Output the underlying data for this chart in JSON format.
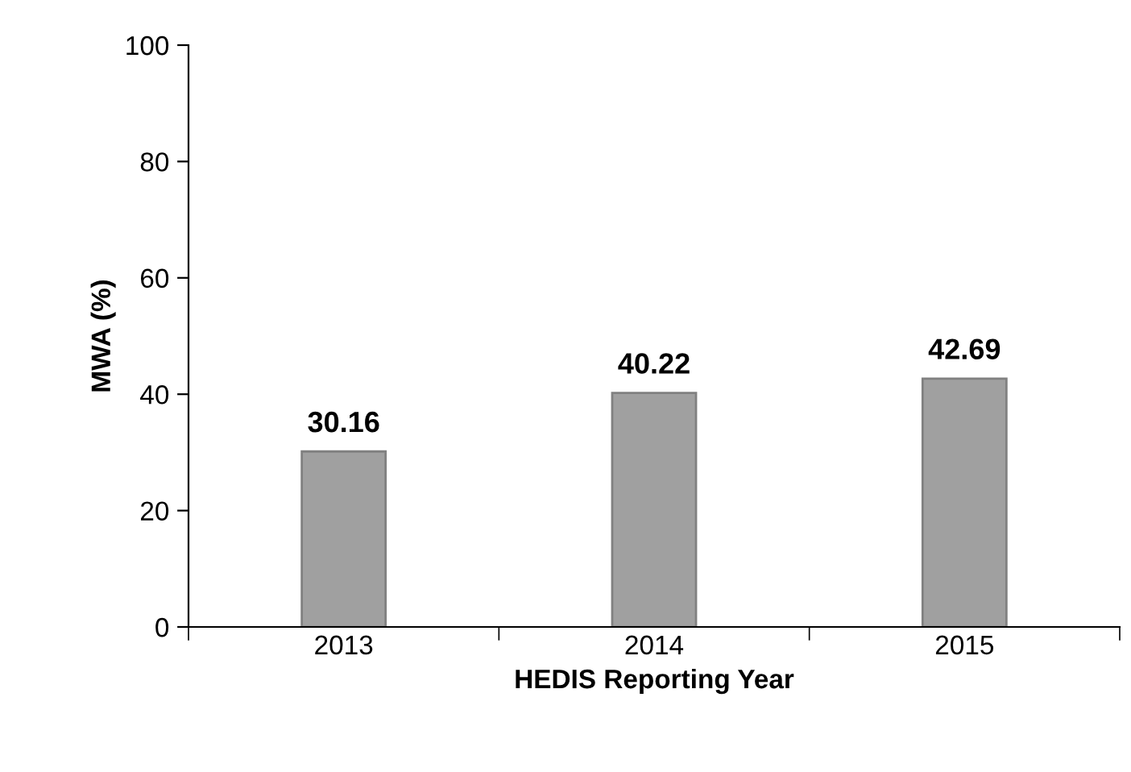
{
  "chart_data": {
    "type": "bar",
    "xlabel": "HEDIS Reporting Year",
    "ylabel": "MWA (%)",
    "categories": [
      "2013",
      "2014",
      "2015"
    ],
    "values": [
      30.16,
      40.22,
      42.69
    ],
    "color": "#a0a0a0",
    "ylim": [
      0,
      100
    ],
    "yticks": [
      0,
      20,
      40,
      60,
      80,
      100
    ],
    "data_labels": true,
    "grid": false,
    "legend": false
  }
}
